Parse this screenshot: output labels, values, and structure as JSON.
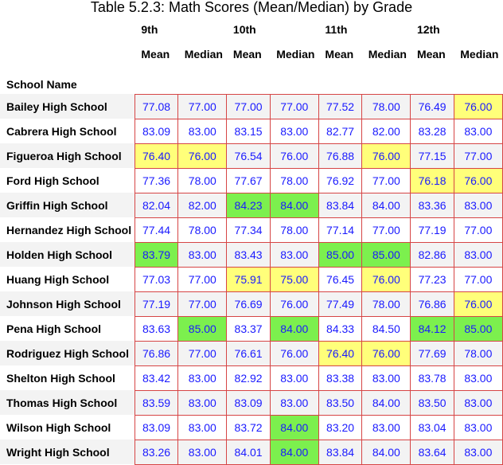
{
  "title": "Table 5.2.3: Math Scores (Mean/Median) by Grade",
  "grades": [
    "9th",
    "10th",
    "11th",
    "12th"
  ],
  "sub_headers": [
    "Mean",
    "Median"
  ],
  "school_header": "School Name",
  "colors": {
    "value_text": "#1a1aff",
    "border": "#d64545",
    "yellow": "#ffff7a",
    "green": "#7cf04e",
    "stripe": "#f3f3f3"
  },
  "rows": [
    {
      "school": "Bailey High School",
      "values": [
        "77.08",
        "77.00",
        "77.00",
        "77.00",
        "77.52",
        "78.00",
        "76.49",
        "76.00"
      ],
      "hl": [
        "",
        "",
        "",
        "",
        "",
        "",
        "",
        "yellow"
      ]
    },
    {
      "school": "Cabrera High School",
      "values": [
        "83.09",
        "83.00",
        "83.15",
        "83.00",
        "82.77",
        "82.00",
        "83.28",
        "83.00"
      ],
      "hl": [
        "",
        "",
        "",
        "",
        "",
        "",
        "",
        ""
      ]
    },
    {
      "school": "Figueroa High School",
      "values": [
        "76.40",
        "76.00",
        "76.54",
        "76.00",
        "76.88",
        "76.00",
        "77.15",
        "77.00"
      ],
      "hl": [
        "yellow",
        "yellow",
        "",
        "",
        "",
        "yellow",
        "",
        ""
      ]
    },
    {
      "school": "Ford High School",
      "values": [
        "77.36",
        "78.00",
        "77.67",
        "78.00",
        "76.92",
        "77.00",
        "76.18",
        "76.00"
      ],
      "hl": [
        "",
        "",
        "",
        "",
        "",
        "",
        "yellow",
        "yellow"
      ]
    },
    {
      "school": "Griffin High School",
      "values": [
        "82.04",
        "82.00",
        "84.23",
        "84.00",
        "83.84",
        "84.00",
        "83.36",
        "83.00"
      ],
      "hl": [
        "",
        "",
        "green",
        "green",
        "",
        "",
        "",
        ""
      ]
    },
    {
      "school": "Hernandez High School",
      "values": [
        "77.44",
        "78.00",
        "77.34",
        "78.00",
        "77.14",
        "77.00",
        "77.19",
        "77.00"
      ],
      "hl": [
        "",
        "",
        "",
        "",
        "",
        "",
        "",
        ""
      ]
    },
    {
      "school": "Holden High School",
      "values": [
        "83.79",
        "83.00",
        "83.43",
        "83.00",
        "85.00",
        "85.00",
        "82.86",
        "83.00"
      ],
      "hl": [
        "green",
        "",
        "",
        "",
        "green",
        "green",
        "",
        ""
      ]
    },
    {
      "school": "Huang High School",
      "values": [
        "77.03",
        "77.00",
        "75.91",
        "75.00",
        "76.45",
        "76.00",
        "77.23",
        "77.00"
      ],
      "hl": [
        "",
        "",
        "yellow",
        "yellow",
        "",
        "yellow",
        "",
        ""
      ]
    },
    {
      "school": "Johnson High School",
      "values": [
        "77.19",
        "77.00",
        "76.69",
        "76.00",
        "77.49",
        "78.00",
        "76.86",
        "76.00"
      ],
      "hl": [
        "",
        "",
        "",
        "",
        "",
        "",
        "",
        "yellow"
      ]
    },
    {
      "school": "Pena High School",
      "values": [
        "83.63",
        "85.00",
        "83.37",
        "84.00",
        "84.33",
        "84.50",
        "84.12",
        "85.00"
      ],
      "hl": [
        "",
        "green",
        "",
        "green",
        "",
        "",
        "green",
        "green"
      ]
    },
    {
      "school": "Rodriguez High School",
      "values": [
        "76.86",
        "77.00",
        "76.61",
        "76.00",
        "76.40",
        "76.00",
        "77.69",
        "78.00"
      ],
      "hl": [
        "",
        "",
        "",
        "",
        "yellow",
        "yellow",
        "",
        ""
      ]
    },
    {
      "school": "Shelton High School",
      "values": [
        "83.42",
        "83.00",
        "82.92",
        "83.00",
        "83.38",
        "83.00",
        "83.78",
        "83.00"
      ],
      "hl": [
        "",
        "",
        "",
        "",
        "",
        "",
        "",
        ""
      ]
    },
    {
      "school": "Thomas High School",
      "values": [
        "83.59",
        "83.00",
        "83.09",
        "83.00",
        "83.50",
        "84.00",
        "83.50",
        "83.00"
      ],
      "hl": [
        "",
        "",
        "",
        "",
        "",
        "",
        "",
        ""
      ]
    },
    {
      "school": "Wilson High School",
      "values": [
        "83.09",
        "83.00",
        "83.72",
        "84.00",
        "83.20",
        "83.00",
        "83.04",
        "83.00"
      ],
      "hl": [
        "",
        "",
        "",
        "green",
        "",
        "",
        "",
        ""
      ]
    },
    {
      "school": "Wright High School",
      "values": [
        "83.26",
        "83.00",
        "84.01",
        "84.00",
        "83.84",
        "84.00",
        "83.64",
        "83.00"
      ],
      "hl": [
        "",
        "",
        "",
        "green",
        "",
        "",
        "",
        ""
      ]
    }
  ]
}
